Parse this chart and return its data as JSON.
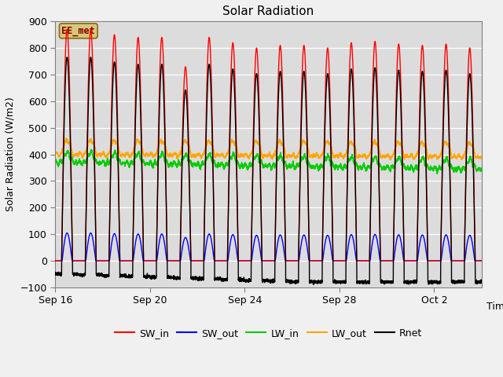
{
  "title": "Solar Radiation",
  "xlabel": "Time",
  "ylabel": "Solar Radiation (W/m2)",
  "ylim": [
    -100,
    900
  ],
  "yticks": [
    -100,
    0,
    100,
    200,
    300,
    400,
    500,
    600,
    700,
    800,
    900
  ],
  "annotation_text": "EE_met",
  "annotation_box_color": "#d4c87a",
  "annotation_text_color": "#8b0000",
  "axes_background": "#dcdcdc",
  "fig_background": "#f0f0f0",
  "colors": {
    "SW_in": "#ff0000",
    "SW_out": "#0000ff",
    "LW_in": "#00cc00",
    "LW_out": "#ffa500",
    "Rnet": "#000000"
  },
  "line_widths": {
    "SW_in": 1.0,
    "SW_out": 1.0,
    "LW_in": 1.2,
    "LW_out": 1.2,
    "Rnet": 1.0
  },
  "xtick_labels": [
    "Sep 16",
    "Sep 20",
    "Sep 24",
    "Sep 28",
    "Oct 2"
  ],
  "xtick_positions": [
    0,
    4,
    8,
    12,
    16
  ],
  "n_days": 18,
  "points_per_day": 288,
  "sw_peaks": [
    870,
    870,
    850,
    840,
    840,
    730,
    840,
    820,
    800,
    810,
    810,
    800,
    820,
    825,
    815,
    810,
    815,
    800
  ],
  "lw_in_base": 370,
  "lw_out_base": 400,
  "fig_width": 6.4,
  "fig_height": 4.8,
  "dpi": 100,
  "sunrise": 0.27,
  "sunset": 0.73
}
